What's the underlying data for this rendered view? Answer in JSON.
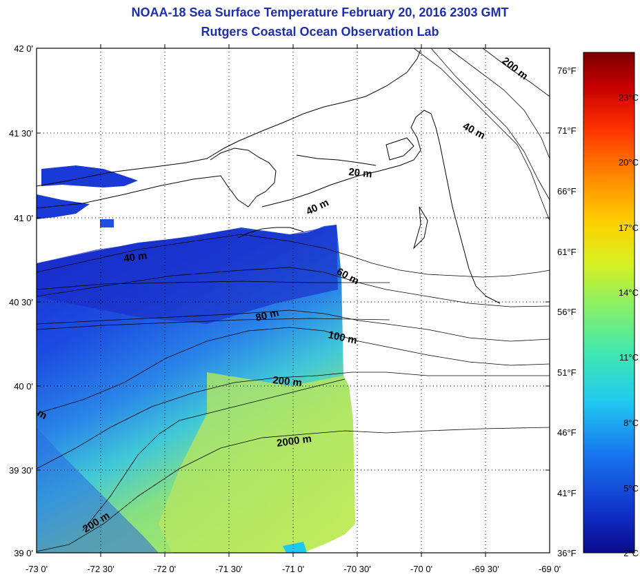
{
  "header": {
    "title": "NOAA-18 Sea Surface Temperature February 20, 2016 2303 GMT",
    "subtitle": "Rutgers Coastal Ocean Observation Lab"
  },
  "map": {
    "lat_labels": [
      "42 0'",
      "41 30'",
      "41 0'",
      "40 30'",
      "40 0'",
      "39 30'",
      "39 0'"
    ],
    "lon_labels": [
      "-73 0'",
      "-72 30'",
      "-72 0'",
      "-71 30'",
      "-71 0'",
      "-70 30'",
      "-70 0'",
      "-69 30'",
      "-69 0'"
    ],
    "fahrenheit_labels": [
      "76°F",
      "71°F",
      "66°F",
      "61°F",
      "56°F",
      "51°F",
      "46°F",
      "41°F",
      "36°F"
    ],
    "isobath_labels": [
      "200 m",
      "40 m",
      "20 m",
      "40 m",
      "40 m",
      "60 m",
      "80 m",
      "100 m",
      "200 m",
      "2000 m",
      "200 m",
      "m"
    ]
  },
  "colorbar": {
    "celsius_labels": [
      "23°C",
      "20°C",
      "17°C",
      "14°C",
      "11°C",
      "8°C",
      "5°C",
      "2°C"
    ],
    "colors": [
      "#7a0000",
      "#c80000",
      "#ff3000",
      "#ff8a00",
      "#ffd000",
      "#d8f020",
      "#8ef060",
      "#40e8b0",
      "#20c8f0",
      "#1878f0",
      "#1030c8",
      "#0a0a8c"
    ]
  }
}
